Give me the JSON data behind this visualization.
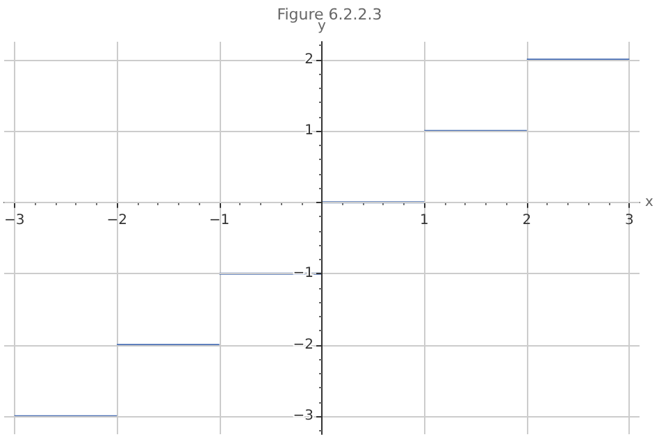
{
  "chart_data": {
    "type": "line",
    "title": "Figure 6.2.2.3",
    "xlabel": "x",
    "ylabel": "y",
    "series": [
      {
        "color": "#4a6fb5",
        "x": [
          -3,
          -2
        ],
        "values": [
          -3,
          -3
        ]
      },
      {
        "color": "#4a6fb5",
        "x": [
          -2,
          -1
        ],
        "values": [
          -2,
          -2
        ]
      },
      {
        "color": "#4a6fb5",
        "x": [
          -1,
          0
        ],
        "values": [
          -1,
          -1
        ]
      },
      {
        "color": "#4a6fb5",
        "x": [
          0,
          1
        ],
        "values": [
          0,
          0
        ]
      },
      {
        "color": "#4a6fb5",
        "x": [
          1,
          2
        ],
        "values": [
          1,
          1
        ]
      },
      {
        "color": "#4a6fb5",
        "x": [
          2,
          3
        ],
        "values": [
          2,
          2
        ]
      }
    ],
    "xlim": [
      -3.1,
      3.1
    ],
    "ylim": [
      -3.25,
      2.25
    ],
    "xticks": [
      {
        "value": -3,
        "label": "−3"
      },
      {
        "value": -2,
        "label": "−2"
      },
      {
        "value": -1,
        "label": "−1"
      },
      {
        "value": 0,
        "label": null
      },
      1,
      2,
      3
    ],
    "yticks": [
      {
        "value": -3,
        "label": "−3"
      },
      {
        "value": -2,
        "label": "−2"
      },
      {
        "value": -1,
        "label": "−1"
      },
      {
        "value": 0,
        "label": null
      },
      1,
      2
    ],
    "grid": true,
    "marker": "none",
    "line_style": "solid"
  }
}
